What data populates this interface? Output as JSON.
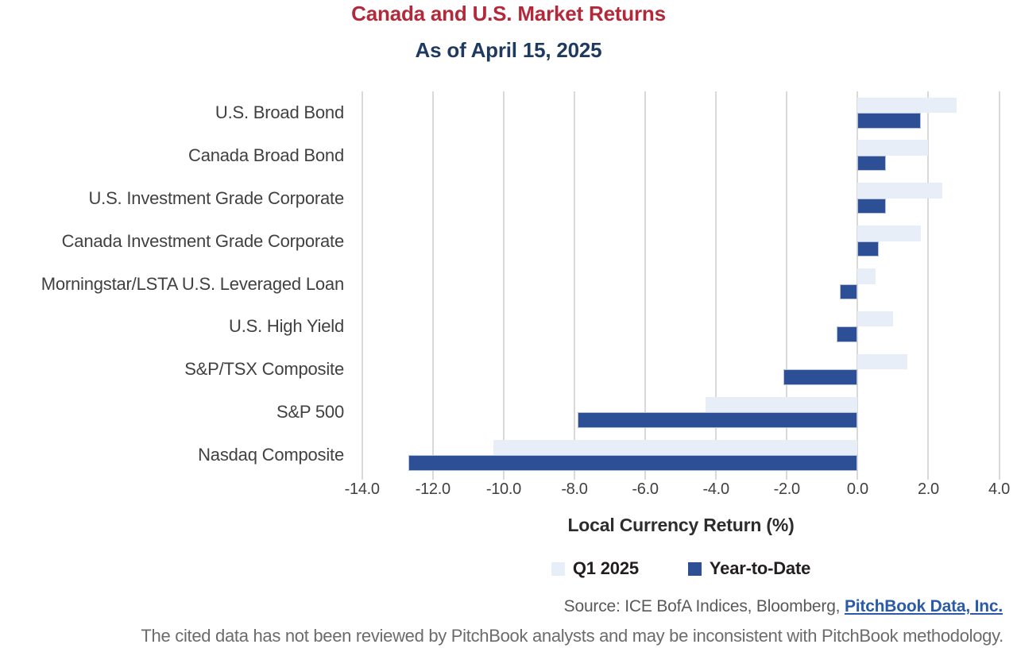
{
  "header": {
    "title": "Canada and U.S. Market Returns",
    "subtitle": "As of April 15, 2025",
    "title_color": "#b2293a",
    "subtitle_color": "#1e3a5f"
  },
  "chart_data": {
    "type": "bar",
    "orientation": "horizontal",
    "title": "Canada and U.S. Market Returns",
    "subtitle": "As of April 15, 2025",
    "categories": [
      "U.S. Broad Bond",
      "Canada Broad Bond",
      "U.S. Investment Grade Corporate",
      "Canada Investment Grade Corporate",
      "Morningstar/LSTA U.S. Leveraged Loan",
      "U.S. High Yield",
      "S&P/TSX Composite",
      "S&P 500",
      "Nasdaq Composite"
    ],
    "series": [
      {
        "name": "Q1 2025",
        "color": "#e8eef8",
        "values": [
          2.8,
          2.0,
          2.4,
          1.8,
          0.5,
          1.0,
          1.4,
          -4.3,
          -10.3
        ]
      },
      {
        "name": "Year-to-Date",
        "color": "#2d4f96",
        "values": [
          1.8,
          0.8,
          0.8,
          0.6,
          -0.5,
          -0.6,
          -2.1,
          -7.9,
          -12.7
        ]
      }
    ],
    "xlabel": "Local Currency Return (%)",
    "ylabel": "",
    "xlim": [
      -14,
      4
    ],
    "xtick_step": 2,
    "xtick_labels": [
      "-14.0",
      "-12.0",
      "-10.0",
      "-8.0",
      "-6.0",
      "-4.0",
      "-2.0",
      "0.0",
      "2.0",
      "4.0"
    ],
    "grid": "vertical",
    "gridline_color": "#d9d9d9",
    "legend_position": "bottom"
  },
  "source": {
    "prefix": "Source: ICE BofA Indices, Bloomberg, ",
    "link": "PitchBook Data, Inc."
  },
  "footer": {
    "text": "The cited data has not been reviewed by PitchBook analysts and may be inconsistent with PitchBook methodology."
  }
}
